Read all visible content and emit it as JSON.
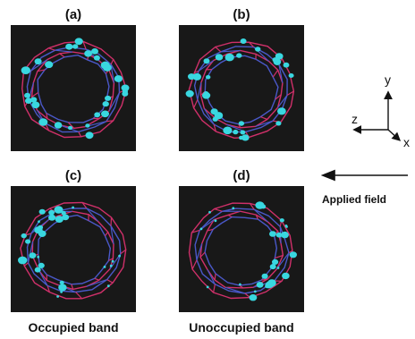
{
  "panels": [
    {
      "label": "(a)",
      "orbital_lobes": "dense-uniform"
    },
    {
      "label": "(b)",
      "orbital_lobes": "dense-uniform"
    },
    {
      "label": "(c)",
      "orbital_lobes": "concentrated-left"
    },
    {
      "label": "(d)",
      "orbital_lobes": "concentrated-right"
    }
  ],
  "captions": {
    "left": "Occupied band",
    "right": "Unoccupied band"
  },
  "axes": {
    "x": "x",
    "y": "y",
    "z": "z"
  },
  "field": {
    "label": "Applied field",
    "direction": "left"
  },
  "colors": {
    "panel_background": "#181818",
    "bond_red": "#d0306a",
    "bond_blue": "#4a58c8",
    "lobe": "#39d7e0"
  }
}
